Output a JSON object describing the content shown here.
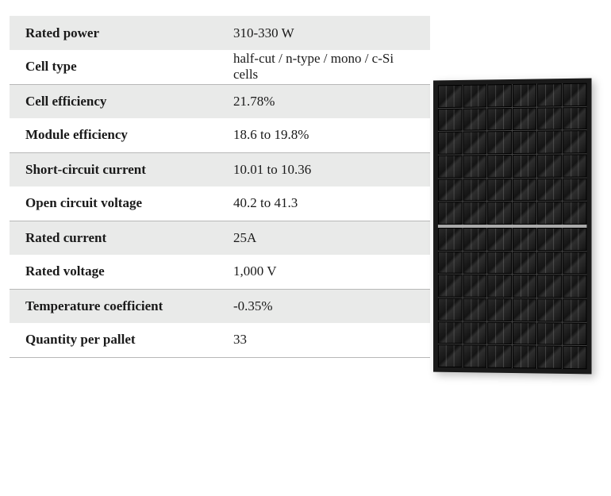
{
  "table": {
    "row_shaded_color": "#e9eae9",
    "row_plain_color": "#ffffff",
    "border_color": "#b8b8b8",
    "text_color": "#1a1a1a",
    "label_font_weight": "bold",
    "font_size_pt": 13,
    "rows": [
      {
        "label": "Rated power",
        "value": "310-330 W",
        "shaded": true
      },
      {
        "label": "Cell type",
        "value": "half-cut / n-type / mono / c-Si cells",
        "shaded": false
      },
      {
        "label": "Cell efficiency",
        "value": "21.78%",
        "shaded": true
      },
      {
        "label": "Module efficiency",
        "value": "18.6 to 19.8%",
        "shaded": false
      },
      {
        "label": "Short-circuit current",
        "value": "10.01 to 10.36",
        "shaded": true
      },
      {
        "label": "Open circuit voltage",
        "value": "40.2 to 41.3",
        "shaded": false
      },
      {
        "label": "Rated current",
        "value": "25A",
        "shaded": true
      },
      {
        "label": "Rated voltage",
        "value": "1,000 V",
        "shaded": false
      },
      {
        "label": "Temperature coefficient",
        "value": "-0.35%",
        "shaded": true
      },
      {
        "label": "Quantity per pallet",
        "value": "33",
        "shaded": false
      }
    ]
  },
  "panel_image": {
    "type": "infographic",
    "description": "monocrystalline solar panel",
    "frame_color": "#1a1a1a",
    "cell_color": "#1c1c1c",
    "grid_color": "#444444",
    "gap_color": "#aaaaaa",
    "columns": 6,
    "rows_per_half": 6,
    "halves": 2
  }
}
